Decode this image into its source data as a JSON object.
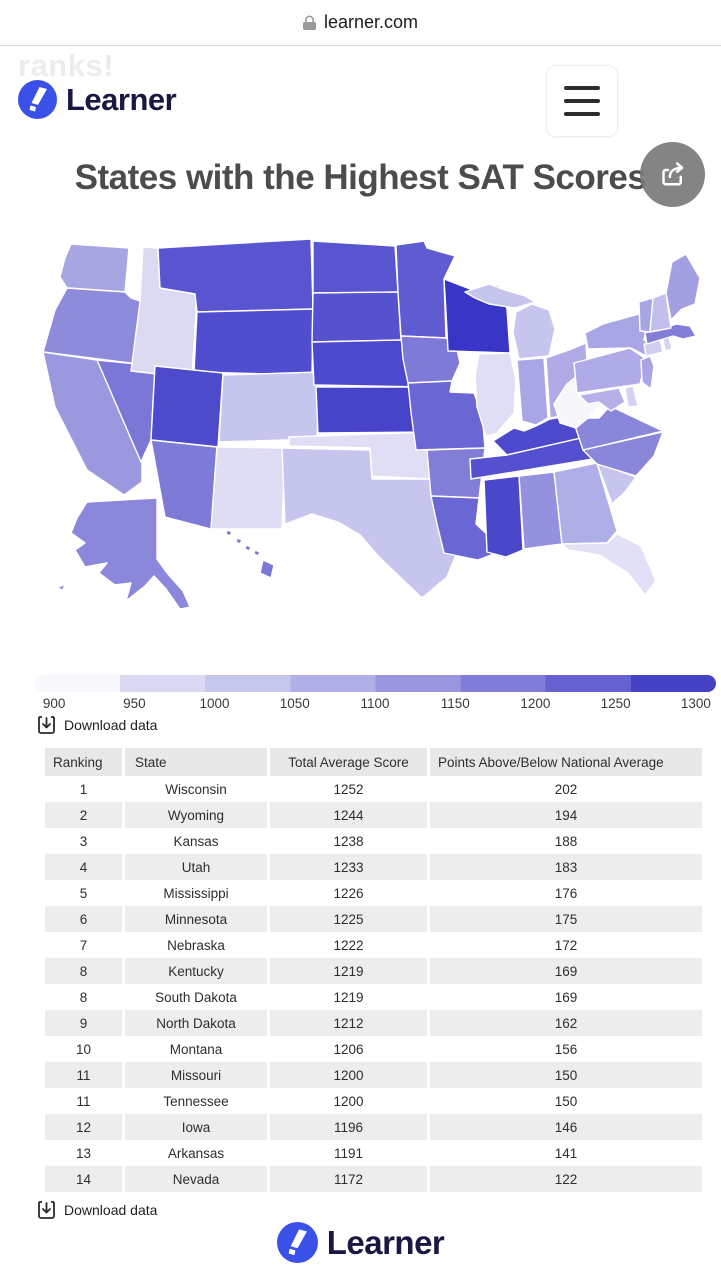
{
  "browser": {
    "url": "learner.com"
  },
  "page": {
    "clipped_heading": "ranks!",
    "brand": "Learner",
    "title": "States with the Highest SAT Scores"
  },
  "legend": {
    "ticks": [
      "900",
      "950",
      "1000",
      "1050",
      "1100",
      "1150",
      "1200",
      "1250",
      "1300"
    ],
    "colors": [
      "#f8f8fc",
      "#dad9f3",
      "#c7c6ee",
      "#b1afe7",
      "#9a96e0",
      "#807cd8",
      "#6561d0",
      "#4542c6"
    ]
  },
  "download": {
    "label": "Download data"
  },
  "table": {
    "headers": [
      "Ranking",
      "State",
      "Total Average Score",
      "Points Above/Below National Average"
    ],
    "rows": [
      [
        "1",
        "Wisconsin",
        "1252",
        "202"
      ],
      [
        "2",
        "Wyoming",
        "1244",
        "194"
      ],
      [
        "3",
        "Kansas",
        "1238",
        "188"
      ],
      [
        "4",
        "Utah",
        "1233",
        "183"
      ],
      [
        "5",
        "Mississippi",
        "1226",
        "176"
      ],
      [
        "6",
        "Minnesota",
        "1225",
        "175"
      ],
      [
        "7",
        "Nebraska",
        "1222",
        "172"
      ],
      [
        "8",
        "Kentucky",
        "1219",
        "169"
      ],
      [
        "8",
        "South Dakota",
        "1219",
        "169"
      ],
      [
        "9",
        "North Dakota",
        "1212",
        "162"
      ],
      [
        "10",
        "Montana",
        "1206",
        "156"
      ],
      [
        "11",
        "Missouri",
        "1200",
        "150"
      ],
      [
        "11",
        "Tennessee",
        "1200",
        "150"
      ],
      [
        "12",
        "Iowa",
        "1196",
        "146"
      ],
      [
        "13",
        "Arkansas",
        "1191",
        "141"
      ],
      [
        "14",
        "Nevada",
        "1172",
        "122"
      ]
    ]
  },
  "footer": {
    "brand": "Learner"
  },
  "map": {
    "states": {
      "WA": "#a8a5e3",
      "OR": "#8f8bdb",
      "CA": "#9b98e0",
      "NV": "#7b77d6",
      "ID": "#dbdaf3",
      "MT": "#5955d0",
      "WY": "#504dce",
      "UT": "#4d4acc",
      "CO": "#c6c5ee",
      "AZ": "#7e7ad7",
      "NM": "#deddf4",
      "ND": "#5955d0",
      "SD": "#5551cf",
      "NE": "#4d49cc",
      "KS": "#4744ca",
      "OK": "#dfdef5",
      "TX": "#c6c5ee",
      "MN": "#5f5bd1",
      "IA": "#7e7ad7",
      "MO": "#6a66d3",
      "AR": "#827ed8",
      "LA": "#6a66d3",
      "WI": "#3936c7",
      "IL": "#dedef5",
      "MI": "#c6c5ee",
      "IN": "#a9a6e5",
      "OH": "#aeabe6",
      "KY": "#4d49cc",
      "TN": "#5450cf",
      "MS": "#4a47cb",
      "AL": "#9491de",
      "GA": "#b0aee6",
      "FL": "#e1e0f5",
      "SC": "#c6c5ee",
      "NC": "#8a86da",
      "VA": "#8a86da",
      "WV": "#f6f6fb",
      "MD": "#b3b1e8",
      "DE": "#d4d3f2",
      "PA": "#aeabe6",
      "NY": "#a9a6e5",
      "NJ": "#a9a6e5",
      "CT": "#cfcef1",
      "RI": "#d4d3f2",
      "MA": "#827ed8",
      "VT": "#a8a5e3",
      "NH": "#c1c0ec",
      "ME": "#a3a0e2",
      "AK": "#8b87da",
      "HI": "#7b77d6"
    }
  },
  "chart_data": {
    "type": "heatmap",
    "subtype": "us-choropleth-map",
    "title": "States with the Highest SAT Scores",
    "series_name": "Total Average SAT Score",
    "color_scale": {
      "min": 900,
      "max": 1300,
      "step": 50,
      "colors": [
        "#f8f8fc",
        "#dad9f3",
        "#c7c6ee",
        "#b1afe7",
        "#9a96e0",
        "#807cd8",
        "#6561d0",
        "#4542c6"
      ]
    },
    "legend_position": "bottom",
    "values": {
      "Wisconsin": 1252,
      "Wyoming": 1244,
      "Kansas": 1238,
      "Utah": 1233,
      "Mississippi": 1226,
      "Minnesota": 1225,
      "Nebraska": 1222,
      "Kentucky": 1219,
      "South Dakota": 1219,
      "North Dakota": 1212,
      "Montana": 1206,
      "Missouri": 1200,
      "Tennessee": 1200,
      "Iowa": 1196,
      "Arkansas": 1191,
      "Nevada": 1172
    },
    "points_above_national_average": {
      "Wisconsin": 202,
      "Wyoming": 194,
      "Kansas": 188,
      "Utah": 183,
      "Mississippi": 176,
      "Minnesota": 175,
      "Nebraska": 172,
      "Kentucky": 169,
      "South Dakota": 169,
      "North Dakota": 162,
      "Montana": 156,
      "Missouri": 150,
      "Tennessee": 150,
      "Iowa": 146,
      "Arkansas": 141,
      "Nevada": 122
    }
  }
}
